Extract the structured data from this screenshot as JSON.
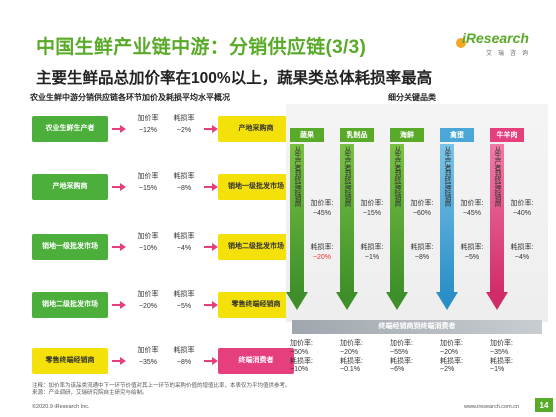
{
  "header": {
    "title": "中国生鲜产业链中游：分销供应链(3/3)",
    "subtitle": "主要生鲜品总加价率在100%以上，蔬果类总体耗损率最高"
  },
  "logo": {
    "name": "iResearch",
    "sub": "艾瑞咨询"
  },
  "colors": {
    "brand_green": "#5aaa2a",
    "stage_green": "#4caf3c",
    "stage_yellow": "#f5e10a",
    "stage_pink": "#e63f7e",
    "highlight_red": "#e6362b"
  },
  "left": {
    "heading": "农业生鲜中游分销供应链各环节加价及耗损平均水平概况",
    "stages": [
      {
        "from": "农业生鲜生产者",
        "to": "产地采购商",
        "markup_label": "加价率",
        "markup": "~12%",
        "loss_label": "耗损率",
        "loss": "~2%"
      },
      {
        "from": "产地采购商",
        "to": "销地一级批发市场",
        "markup_label": "加价率",
        "markup": "~15%",
        "loss_label": "耗损率",
        "loss": "~8%"
      },
      {
        "from": "销地一级批发市场",
        "to": "销地二级批发市场",
        "markup_label": "加价率",
        "markup": "~10%",
        "loss_label": "耗损率",
        "loss": "~4%"
      },
      {
        "from": "销地二级批发市场",
        "to": "零售终端经销商",
        "markup_label": "加价率",
        "markup": "~20%",
        "loss_label": "耗损率",
        "loss": "~5%"
      },
      {
        "from": "零售终端经销商",
        "to": "终端消费者",
        "markup_label": "加价率",
        "markup": "~35%",
        "loss_label": "耗损率",
        "loss": "~8%"
      }
    ]
  },
  "right": {
    "heading": "细分关键品类",
    "arrow_text": "从生产者到终端经销商",
    "bottom_bar_label": "终端经销商到终端消费者",
    "categories": [
      {
        "name": "蔬果",
        "color": "#5aaa2a",
        "markup_label": "加价率:",
        "markup": "~45%",
        "loss_label": "耗损率:",
        "loss": "~20%",
        "loss_highlight": true,
        "end_markup_label": "加价率:",
        "end_markup": "~50%",
        "end_loss_label": "耗损率:",
        "end_loss": "~10%"
      },
      {
        "name": "乳制品",
        "color": "#5aaa2a",
        "markup_label": "加价率:",
        "markup": "~15%",
        "loss_label": "耗损率:",
        "loss": "~1%",
        "loss_highlight": false,
        "end_markup_label": "加价率:",
        "end_markup": "~20%",
        "end_loss_label": "耗损率:",
        "end_loss": "~0.1%"
      },
      {
        "name": "海鲜",
        "color": "#5aaa2a",
        "markup_label": "加价率:",
        "markup": "~60%",
        "loss_label": "耗损率:",
        "loss": "~8%",
        "loss_highlight": false,
        "end_markup_label": "加价率:",
        "end_markup": "~55%",
        "end_loss_label": "耗损率:",
        "end_loss": "~6%"
      },
      {
        "name": "禽蛋",
        "color": "#4aa7d8",
        "markup_label": "加价率:",
        "markup": "~45%",
        "loss_label": "耗损率:",
        "loss": "~5%",
        "loss_highlight": false,
        "end_markup_label": "加价率:",
        "end_markup": "~20%",
        "end_loss_label": "耗损率:",
        "end_loss": "~2%"
      },
      {
        "name": "牛羊肉",
        "color": "#e63f7e",
        "markup_label": "加价率:",
        "markup": "~40%",
        "loss_label": "耗损率:",
        "loss": "~4%",
        "loss_highlight": false,
        "end_markup_label": "加价率:",
        "end_markup": "~35%",
        "end_loss_label": "耗损率:",
        "end_loss": "~1%"
      }
    ]
  },
  "footer": {
    "note1": "注释：加价率为该品类流通中下一环节价值对其上一环节的采购价值的增值比率，本表仅为平均值供参考。",
    "note2": "来源：产业调研，艾瑞研究院自主研究与绘制。",
    "copyright": "©2020.9 iResearch Inc.",
    "site": "www.iresearch.com.cn",
    "page": "14"
  }
}
